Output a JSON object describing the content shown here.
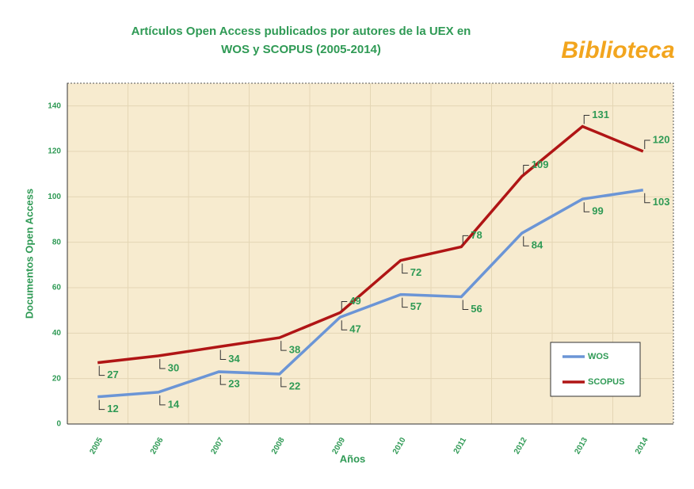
{
  "title_lines": [
    "Artículos Open Access publicados por autores de la UEX en",
    "WOS  y  SCOPUS   (2005-2014)"
  ],
  "logo": "Biblioteca",
  "chart_data": {
    "type": "line",
    "categories": [
      "2005",
      "2006",
      "2007",
      "2008",
      "2009",
      "2010",
      "2011",
      "2012",
      "2013",
      "2014"
    ],
    "series": [
      {
        "name": "WOS",
        "color": "#6b95d6",
        "values": [
          12,
          14,
          23,
          22,
          47,
          57,
          56,
          84,
          99,
          103
        ]
      },
      {
        "name": "SCOPUS",
        "color": "#b01515",
        "values": [
          27,
          30,
          34,
          38,
          49,
          72,
          78,
          109,
          131,
          120
        ]
      }
    ],
    "ylim": [
      0,
      150
    ],
    "yticks": [
      0,
      20,
      40,
      60,
      80,
      100,
      120,
      140
    ],
    "grid": true,
    "ylabel": "Documentos  Open Access",
    "xlabel": "Años",
    "legend": "lower right"
  }
}
